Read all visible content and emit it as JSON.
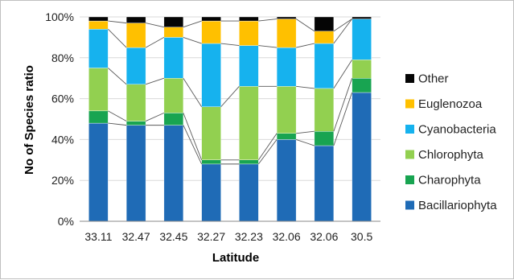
{
  "chart_data": {
    "type": "bar",
    "stacked": true,
    "normalized": true,
    "xlabel": "Latitude",
    "ylabel": "No of Species ratio",
    "ylim": [
      0,
      100
    ],
    "yticks": [
      "0%",
      "20%",
      "40%",
      "60%",
      "80%",
      "100%"
    ],
    "categories": [
      "33.11",
      "32.47",
      "32.45",
      "32.27",
      "32.23",
      "32.06",
      "32.06",
      "30.5"
    ],
    "series": [
      {
        "name": "Bacillariophyta",
        "color": "#1f6bb6",
        "values": [
          48,
          47,
          47,
          28,
          28,
          40,
          37,
          63
        ]
      },
      {
        "name": "Charophyta",
        "color": "#18a451",
        "values": [
          6,
          2,
          6,
          2,
          2,
          3,
          7,
          7
        ]
      },
      {
        "name": "Chlorophyta",
        "color": "#92d050",
        "values": [
          21,
          18,
          17,
          26,
          36,
          23,
          21,
          9
        ]
      },
      {
        "name": "Cyanobacteria",
        "color": "#16b2ee",
        "values": [
          19,
          18,
          20,
          31,
          20,
          19,
          22,
          20
        ]
      },
      {
        "name": "Euglenozoa",
        "color": "#ffc000",
        "values": [
          4,
          12,
          5,
          11,
          12,
          14,
          6,
          0
        ]
      },
      {
        "name": "Other",
        "color": "#050505",
        "values": [
          2,
          3,
          5,
          2,
          2,
          1,
          7,
          1
        ]
      }
    ],
    "connector_lines": true,
    "legend_position": "right",
    "grid": true
  }
}
